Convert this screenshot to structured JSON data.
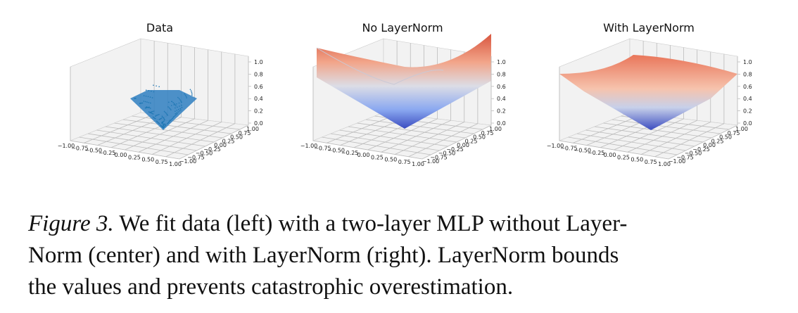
{
  "figure": {
    "panels": [
      {
        "title": "Data",
        "x_ticks": [
          "−1.00",
          "−0.75",
          "−0.50",
          "−0.25",
          "0.00",
          "0.25",
          "0.50",
          "0.75",
          "1.00"
        ],
        "y_ticks": [
          "−1.00",
          "−0.75",
          "−0.50",
          "−0.25",
          "0.00",
          "0.25",
          "0.50",
          "0.75",
          "1.00"
        ],
        "z_ticks": [
          "0.0",
          "0.2",
          "0.4",
          "0.6",
          "0.8",
          "1.0"
        ]
      },
      {
        "title": "No LayerNorm",
        "x_ticks": [
          "−1.00",
          "−0.75",
          "−0.50",
          "−0.25",
          "0.00",
          "0.25",
          "0.50",
          "0.75",
          "1.00"
        ],
        "y_ticks": [
          "−1.00",
          "−0.75",
          "−0.50",
          "−0.25",
          "0.00",
          "0.25",
          "0.50",
          "0.75",
          "1.00"
        ],
        "z_ticks": [
          "0.0",
          "0.2",
          "0.4",
          "0.6",
          "0.8",
          "1.0"
        ]
      },
      {
        "title": "With LayerNorm",
        "x_ticks": [
          "−1.00",
          "−0.75",
          "−0.50",
          "−0.25",
          "0.00",
          "0.25",
          "0.50",
          "0.75",
          "1.00"
        ],
        "y_ticks": [
          "−1.00",
          "−0.75",
          "−0.50",
          "−0.25",
          "0.00",
          "0.25",
          "0.50",
          "0.75",
          "1.00"
        ],
        "z_ticks": [
          "0.0",
          "0.2",
          "0.4",
          "0.6",
          "0.8",
          "1.0"
        ]
      }
    ],
    "caption": {
      "label": "Figure 3.",
      "lines": [
        "We fit data (left) with a two-layer MLP without Layer-",
        "Norm (center) and with LayerNorm (right). LayerNorm bounds",
        "the values and prevents catastrophic overestimation."
      ]
    }
  }
}
